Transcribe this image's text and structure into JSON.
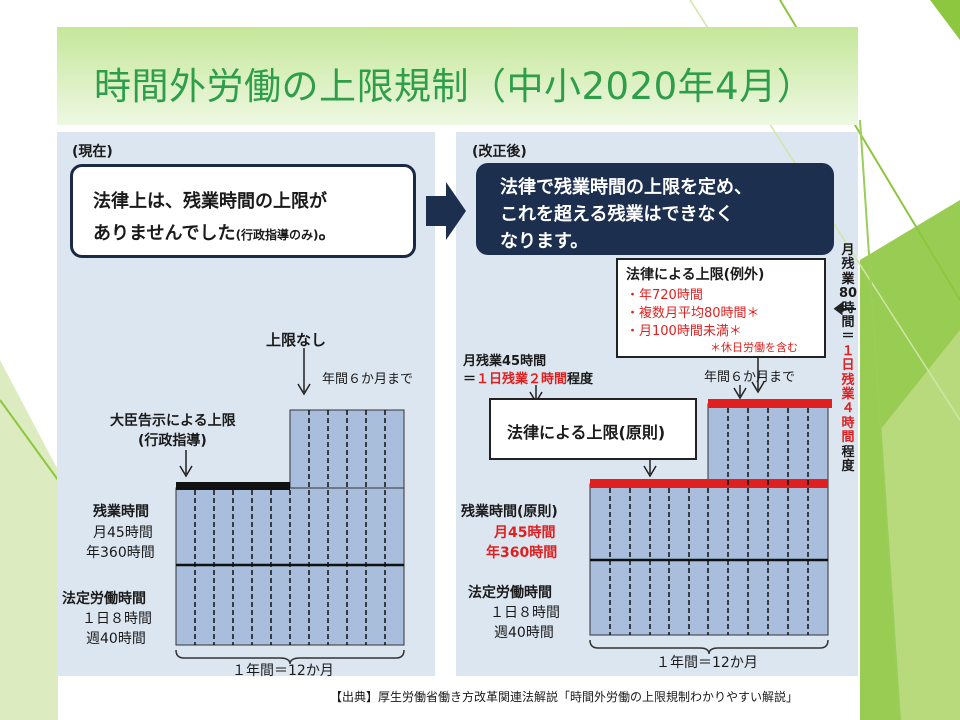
{
  "title": "時間外労働の上限規制（中小2020年4月）",
  "left": {
    "heading": "(現在)",
    "box_line1": "法律上は、残業時間の上限が",
    "box_line2_main": "ありませんでした",
    "box_line2_small": "(行政指導のみ)",
    "box_line2_end": "。",
    "no_limit": "上限なし",
    "six_months": "年間６か月まで",
    "minister_line1": "大臣告示による上限",
    "minister_line2": "(行政指導)",
    "overtime_label": "残業時間",
    "overtime_month": "月45時間",
    "overtime_year": "年360時間",
    "legal_label": "法定労働時間",
    "legal_day": "１日８時間",
    "legal_week": "週40時間",
    "year_label": "１年間＝12か月"
  },
  "right": {
    "heading": "(改正後)",
    "box_line1": "法律で残業時間の上限を定め、",
    "box_line2": "これを超える残業はできなく",
    "box_line3": "なります。",
    "exception_title": "法律による上限(例外)",
    "exception_items": [
      "・年720時間",
      "・複数月平均80時間＊",
      "・月100時間未満＊"
    ],
    "exception_note": "＊休日労働を含む",
    "monthly_45_line1": "月残業45時間",
    "monthly_45_line2_a": "＝",
    "monthly_45_line2_red": "１日残業２時間",
    "monthly_45_line2_b": "程度",
    "six_months": "年間６か月まで",
    "principle_label": "法律による上限(原則)",
    "overtime_label": "残業時間(原則)",
    "overtime_month": "月45時間",
    "overtime_year": "年360時間",
    "legal_label": "法定労働時間",
    "legal_day": "１日８時間",
    "legal_week": "週40時間",
    "year_label": "１年間＝12か月",
    "vertical_black": [
      "月",
      "残",
      "業",
      "80",
      "時",
      "間",
      "＝"
    ],
    "vertical_red": [
      "１",
      "日",
      "残",
      "業",
      "４",
      "時",
      "間"
    ],
    "vertical_end": [
      "程",
      "度"
    ]
  },
  "source": "【出典】厚生労働省働き方改革関連法解説「時間外労働の上限規制わかりやすい解説」",
  "colors": {
    "title": "#2e9e4a",
    "panel": "#dce6f1",
    "navy": "#1c2f4f",
    "red": "#e02020",
    "bar": "#a8bedc",
    "lime": "#8dc63f"
  }
}
